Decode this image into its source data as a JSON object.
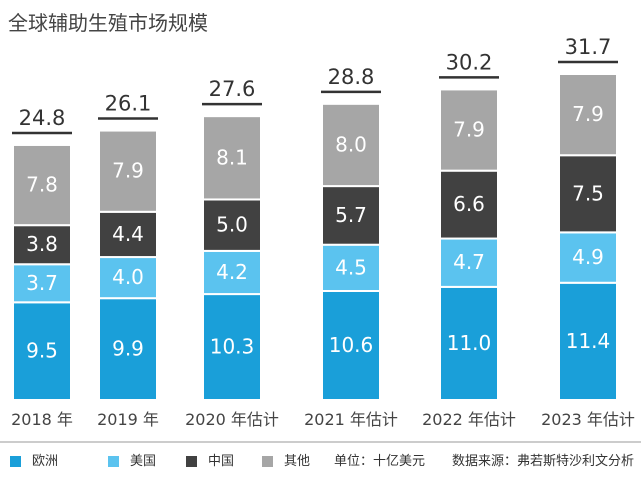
{
  "chart_data": {
    "type": "bar",
    "stacked": true,
    "title": "全球辅助生殖市场规模",
    "categories": [
      "2018 年",
      "2019 年",
      "2020 年估计",
      "2021 年估计",
      "2022 年估计",
      "2023 年估计"
    ],
    "series": [
      {
        "name": "欧洲",
        "color": "#1a9fd9",
        "text_color": "#ffffff",
        "values": [
          9.5,
          9.9,
          10.3,
          10.6,
          11.0,
          11.4
        ]
      },
      {
        "name": "美国",
        "color": "#5bc3ef",
        "text_color": "#ffffff",
        "values": [
          3.7,
          4.0,
          4.2,
          4.5,
          4.7,
          4.9
        ]
      },
      {
        "name": "中国",
        "color": "#414141",
        "text_color": "#ffffff",
        "values": [
          3.8,
          4.4,
          5.0,
          5.7,
          6.6,
          7.5
        ]
      },
      {
        "name": "其他",
        "color": "#a6a6a6",
        "text_color": "#ffffff",
        "values": [
          7.8,
          7.9,
          8.1,
          8.0,
          7.9,
          7.9
        ]
      }
    ],
    "totals": [
      "24.8",
      "26.1",
      "27.6",
      "28.8",
      "30.2",
      "31.7"
    ],
    "ylim": [
      0,
      31.7
    ],
    "legend_position": "bottom",
    "grid": false,
    "unit_note": "单位：十亿美元",
    "source_note": "数据来源：弗若斯特沙利文分析"
  }
}
